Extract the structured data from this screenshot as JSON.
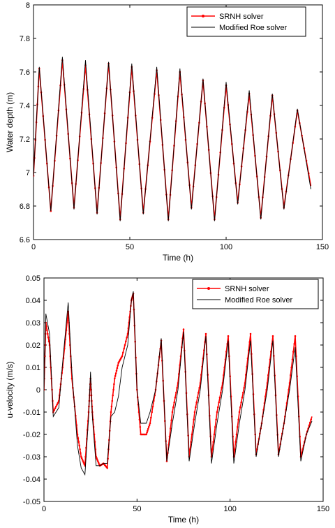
{
  "chart_data": [
    {
      "type": "line",
      "xlabel": "Time (h)",
      "ylabel": "Water depth (m)",
      "xlim": [
        0,
        150
      ],
      "ylim": [
        6.6,
        8.0
      ],
      "xticks": [
        "0",
        "50",
        "100",
        "150"
      ],
      "yticks": [
        "6.6",
        "6.8",
        "7",
        "7.2",
        "7.4",
        "7.6",
        "7.8",
        "8"
      ],
      "legend_position": "top-right",
      "legend": [
        "SRNH solver",
        "Modified Roe solver"
      ],
      "series": [
        {
          "name": "SRNH solver",
          "color": "#ff0000",
          "marker": "dot",
          "x": [
            0,
            3,
            9,
            15,
            21,
            27,
            33,
            39,
            45,
            51,
            57,
            64,
            70,
            76,
            82,
            88,
            94,
            100,
            106,
            112,
            118,
            124,
            130,
            137,
            144
          ],
          "y": [
            6.98,
            7.62,
            6.77,
            7.67,
            6.79,
            7.64,
            6.76,
            7.65,
            6.72,
            7.63,
            6.76,
            7.61,
            6.72,
            7.6,
            6.79,
            7.55,
            6.72,
            7.52,
            6.82,
            7.47,
            6.73,
            7.46,
            6.79,
            7.37,
            6.92
          ]
        },
        {
          "name": "Modified Roe solver",
          "color": "#000000",
          "x": [
            0,
            3,
            9,
            15,
            21,
            27,
            33,
            39,
            45,
            51,
            57,
            64,
            70,
            76,
            82,
            88,
            94,
            100,
            106,
            112,
            118,
            124,
            130,
            137,
            144
          ],
          "y": [
            6.98,
            7.63,
            6.77,
            7.69,
            6.78,
            7.67,
            6.75,
            7.66,
            6.71,
            7.65,
            6.75,
            7.63,
            6.71,
            7.62,
            6.78,
            7.56,
            6.71,
            7.54,
            6.81,
            7.49,
            6.72,
            7.47,
            6.78,
            7.38,
            6.9
          ]
        }
      ]
    },
    {
      "type": "line",
      "xlabel": "Time (h)",
      "ylabel": "u-velocity (m/s)",
      "xlim": [
        0,
        150
      ],
      "ylim": [
        -0.05,
        0.05
      ],
      "xticks": [
        "0",
        "50",
        "100",
        "150"
      ],
      "yticks": [
        "-0.05",
        "-0.04",
        "-0.03",
        "-0.02",
        "-0.01",
        "0",
        "0.01",
        "0.02",
        "0.03",
        "0.04",
        "0.05"
      ],
      "legend_position": "top-right",
      "legend": [
        "SRNH solver",
        "Modified Roe solver"
      ],
      "series": [
        {
          "name": "SRNH solver",
          "color": "#ff0000",
          "marker": "dot",
          "x": [
            0,
            1,
            3,
            5,
            8,
            10,
            13,
            15,
            18,
            20,
            22,
            24,
            25,
            26,
            28,
            30,
            32,
            34,
            36,
            38,
            40,
            42,
            45,
            47,
            48,
            50,
            52,
            55,
            57,
            60,
            63,
            66,
            69,
            72,
            75,
            78,
            81,
            84,
            87,
            90,
            93,
            96,
            99,
            102,
            105,
            108,
            111,
            114,
            117,
            120,
            123,
            126,
            129,
            132,
            135,
            138,
            141,
            144
          ],
          "y": [
            0.0,
            0.03,
            0.02,
            -0.01,
            -0.005,
            0.01,
            0.035,
            0.005,
            -0.02,
            -0.03,
            -0.034,
            -0.01,
            0.005,
            -0.01,
            -0.03,
            -0.034,
            -0.033,
            -0.035,
            -0.01,
            0.005,
            0.012,
            0.015,
            0.025,
            0.04,
            0.043,
            0.0,
            -0.02,
            -0.02,
            -0.015,
            0.0,
            0.022,
            -0.032,
            -0.01,
            0.003,
            0.027,
            -0.03,
            -0.01,
            0.003,
            0.025,
            -0.03,
            -0.01,
            0.003,
            0.024,
            -0.03,
            -0.01,
            0.003,
            0.025,
            -0.029,
            -0.015,
            0.003,
            0.024,
            -0.029,
            -0.015,
            0.003,
            0.024,
            -0.03,
            -0.02,
            -0.012
          ]
        },
        {
          "name": "Modified Roe solver",
          "color": "#000000",
          "x": [
            0,
            1,
            3,
            5,
            8,
            10,
            13,
            15,
            18,
            20,
            22,
            24,
            25,
            26,
            28,
            30,
            32,
            34,
            36,
            38,
            40,
            42,
            45,
            47,
            48,
            50,
            52,
            55,
            57,
            60,
            63,
            66,
            69,
            72,
            75,
            78,
            81,
            84,
            87,
            90,
            93,
            96,
            99,
            102,
            105,
            108,
            111,
            114,
            117,
            120,
            123,
            126,
            129,
            132,
            135,
            138,
            141,
            144
          ],
          "y": [
            0.0,
            0.034,
            0.025,
            -0.012,
            -0.008,
            0.012,
            0.039,
            0.008,
            -0.025,
            -0.035,
            -0.038,
            -0.012,
            0.008,
            -0.012,
            -0.034,
            -0.034,
            -0.033,
            -0.033,
            -0.012,
            -0.01,
            -0.003,
            0.01,
            0.02,
            0.04,
            0.044,
            0.0,
            -0.015,
            -0.015,
            -0.01,
            0.0,
            0.023,
            -0.032,
            -0.015,
            0.0,
            0.026,
            -0.032,
            -0.015,
            0.0,
            0.024,
            -0.033,
            -0.015,
            0.0,
            0.022,
            -0.033,
            -0.015,
            0.0,
            0.022,
            -0.03,
            -0.015,
            0.0,
            0.022,
            -0.03,
            -0.015,
            0.0,
            0.019,
            -0.032,
            -0.02,
            -0.014
          ]
        }
      ]
    }
  ]
}
